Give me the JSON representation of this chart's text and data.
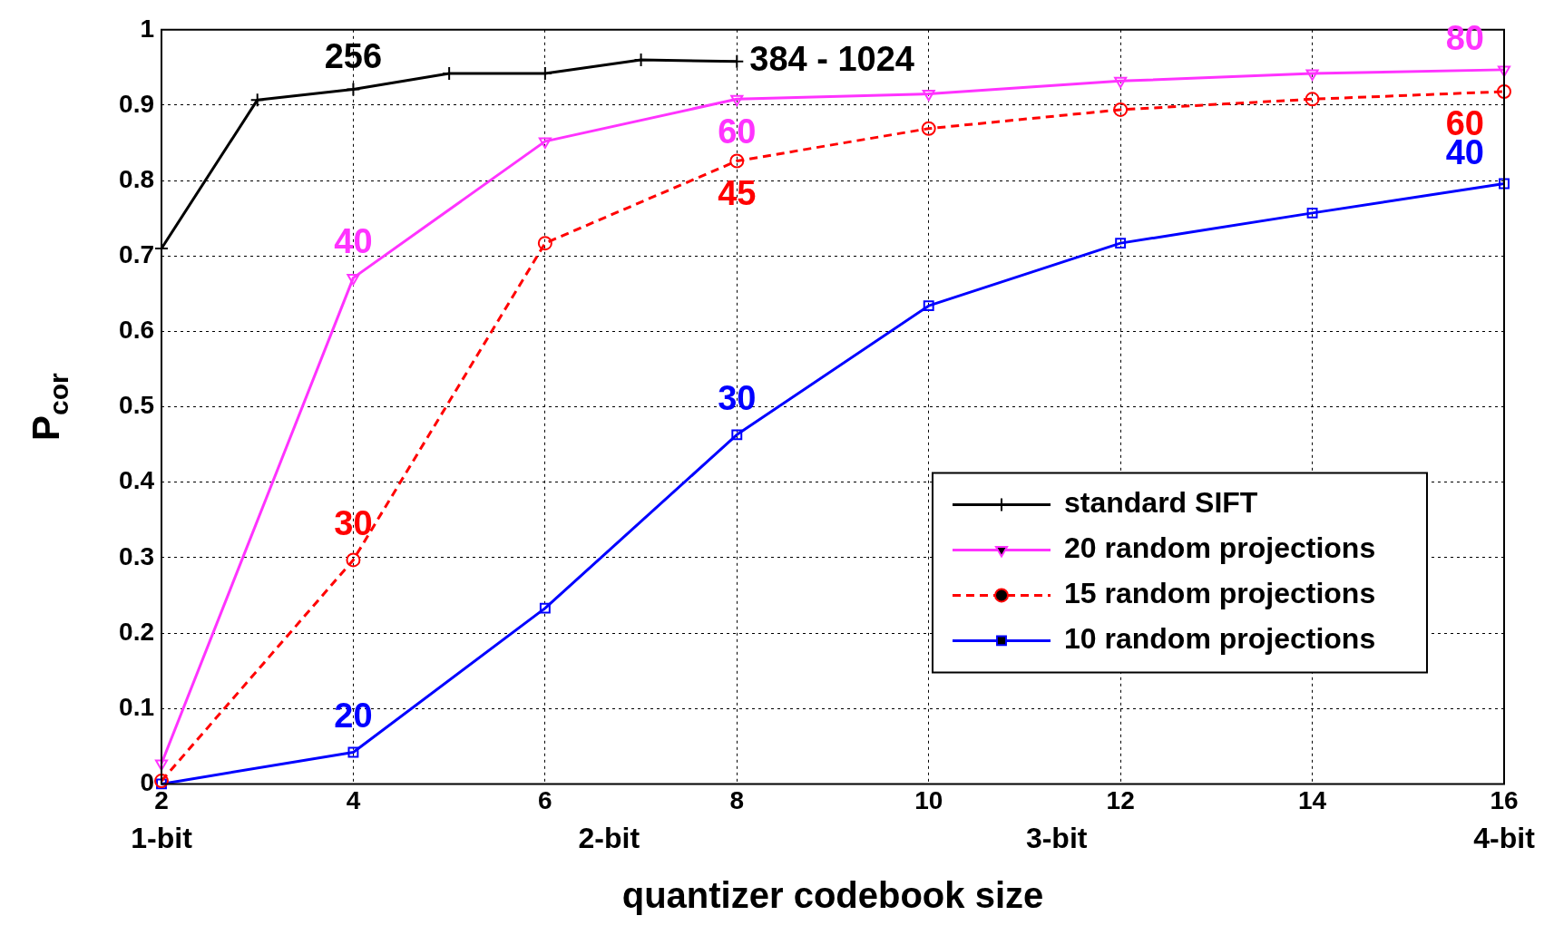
{
  "chart_data": {
    "type": "line",
    "xlabel": "quantizer codebook size",
    "ylabel": "P$_{cor}$",
    "x": [
      2,
      4,
      6,
      8,
      10,
      12,
      14,
      16
    ],
    "xlim": [
      2,
      16
    ],
    "xticks": [
      2,
      4,
      6,
      8,
      10,
      12,
      14,
      16
    ],
    "ylim": [
      0,
      1
    ],
    "yticks": [
      0,
      0.1,
      0.2,
      0.3,
      0.4,
      0.5,
      0.6,
      0.7,
      0.8,
      0.9,
      1
    ],
    "grid": true,
    "legend": "bottom right",
    "series": [
      {
        "name": "standard SIFT",
        "color": "#000000",
        "marker": "cross",
        "line_style": "solid",
        "x": [
          2,
          3,
          4,
          5,
          6,
          7,
          8
        ],
        "values": [
          0.71,
          0.907,
          0.921,
          0.942,
          0.942,
          0.96,
          0.958
        ]
      },
      {
        "name": "20 random projections",
        "color": "#ff33ff",
        "marker": "triangle",
        "line_style": "solid",
        "values": [
          0.027,
          0.671,
          0.852,
          0.908,
          0.915,
          0.932,
          0.942,
          0.947
        ]
      },
      {
        "name": "15 random projections",
        "color": "#ff0000",
        "marker": "circle",
        "line_style": "dashed",
        "values": [
          0.004,
          0.297,
          0.717,
          0.826,
          0.869,
          0.894,
          0.908,
          0.918
        ]
      },
      {
        "name": "10 random projections",
        "color": "#0000ff",
        "marker": "square",
        "line_style": "solid",
        "values": [
          0.0,
          0.042,
          0.233,
          0.463,
          0.634,
          0.717,
          0.757,
          0.796
        ]
      }
    ],
    "annotations": [
      {
        "text": "256",
        "x": 4,
        "y": 0.921
      },
      {
        "text": "384 - 1024",
        "x": 8,
        "y": 0.958
      },
      {
        "text": "40",
        "x": 4,
        "y": 0.671
      },
      {
        "text": "30",
        "x": 4,
        "y": 0.297
      },
      {
        "text": "20",
        "x": 4,
        "y": 0.042
      },
      {
        "text": "60",
        "x": 8,
        "y": 0.908
      },
      {
        "text": "45",
        "x": 8,
        "y": 0.826
      },
      {
        "text": "30",
        "x": 8,
        "y": 0.463
      },
      {
        "text": "80",
        "x": 16,
        "y": 0.947
      },
      {
        "text": "60",
        "x": 16,
        "y": 0.918
      },
      {
        "text": "40",
        "x": 16,
        "y": 0.796
      },
      "1-bit",
      "2-bit",
      "3-bit",
      "4-bit"
    ]
  }
}
